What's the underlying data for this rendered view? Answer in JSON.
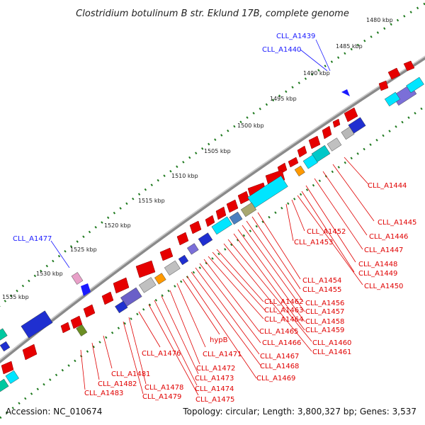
{
  "title": "Clostridium botulinum B str. Eklund 17B, complete genome",
  "footer": {
    "accession": "Accession: NC_010674",
    "summary": "Topology: circular; Length: 3,800,327 bp; Genes: 3,537"
  },
  "ticks": [
    "1480 kbp",
    "1485 kbp",
    "1490 kbp",
    "1495 kbp",
    "1500 kbp",
    "1505 kbp",
    "1510 kbp",
    "1515 kbp",
    "1520 kbp",
    "1525 kbp",
    "1530 kbp",
    "1535 kbp"
  ],
  "gene_labels": {
    "blue": [
      "CLL_A1439",
      "CLL_A1440",
      "CLL_A1477"
    ],
    "red": [
      "CLL_A1444",
      "CLL_A1445",
      "CLL_A1446",
      "CLL_A1447",
      "CLL_A1448",
      "CLL_A1449",
      "CLL_A1450",
      "CLL_A1452",
      "CLL_A1453",
      "CLL_A1454",
      "CLL_A1455",
      "CLL_A1456",
      "CLL_A1457",
      "CLL_A1458",
      "CLL_A1459",
      "CLL_A1460",
      "CLL_A1461",
      "CLL_A1462",
      "CLL_A1463",
      "CLL_A1464",
      "CLL_A1465",
      "CLL_A1466",
      "CLL_A1467",
      "CLL_A1468",
      "CLL_A1469",
      "hypB",
      "CLL_A1471",
      "CLL_A1472",
      "CLL_A1473",
      "CLL_A1474",
      "CLL_A1475",
      "CLL_A1476",
      "CLL_A1478",
      "CLL_A1479",
      "CLL_A1481",
      "CLL_A1482",
      "CLL_A1483"
    ]
  },
  "colors": {
    "backbone": "#8a8a8a",
    "forward_gene": "#e60000",
    "reverse_gene": "#00e5ff",
    "ruler_dots": "#1f7a1f",
    "label_red": "#e00000",
    "label_blue": "#1a1aff"
  }
}
